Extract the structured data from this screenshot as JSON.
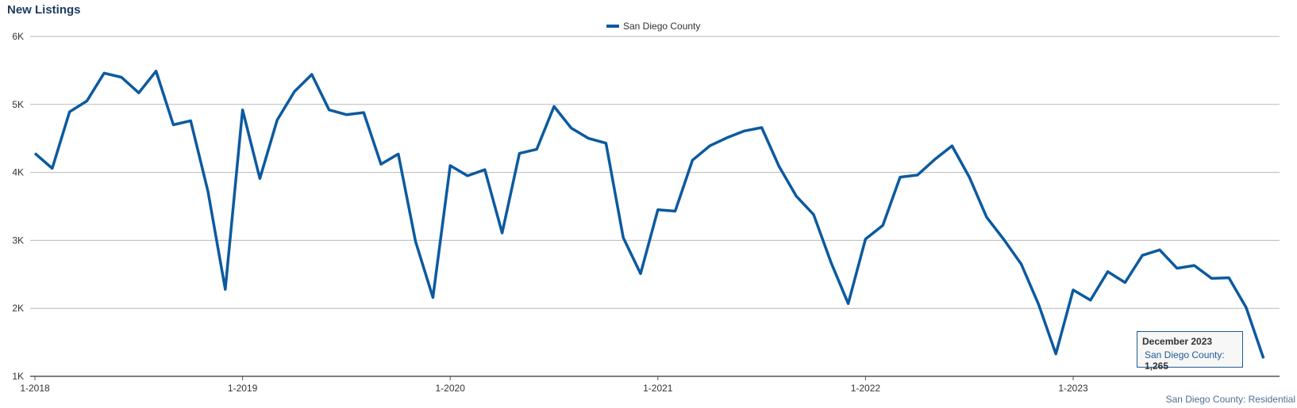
{
  "header": {
    "title": "New Listings"
  },
  "chart_data": {
    "type": "line",
    "title": "New Listings",
    "xlabel": "",
    "ylabel": "",
    "ylim": [
      1000,
      6000
    ],
    "y_ticks": [
      {
        "value": 1000,
        "label": "1K"
      },
      {
        "value": 2000,
        "label": "2K"
      },
      {
        "value": 3000,
        "label": "3K"
      },
      {
        "value": 4000,
        "label": "4K"
      },
      {
        "value": 5000,
        "label": "5K"
      },
      {
        "value": 6000,
        "label": "6K"
      }
    ],
    "x_ticks": [
      "1-2018",
      "1-2019",
      "1-2020",
      "1-2021",
      "1-2022",
      "1-2023"
    ],
    "grid": true,
    "legend": "top-center",
    "series": [
      {
        "name": "San Diego County",
        "color": "#0b5aa0",
        "x": [
          "2018-01",
          "2018-02",
          "2018-03",
          "2018-04",
          "2018-05",
          "2018-06",
          "2018-07",
          "2018-08",
          "2018-09",
          "2018-10",
          "2018-11",
          "2018-12",
          "2019-01",
          "2019-02",
          "2019-03",
          "2019-04",
          "2019-05",
          "2019-06",
          "2019-07",
          "2019-08",
          "2019-09",
          "2019-10",
          "2019-11",
          "2019-12",
          "2020-01",
          "2020-02",
          "2020-03",
          "2020-04",
          "2020-05",
          "2020-06",
          "2020-07",
          "2020-08",
          "2020-09",
          "2020-10",
          "2020-11",
          "2020-12",
          "2021-01",
          "2021-02",
          "2021-03",
          "2021-04",
          "2021-05",
          "2021-06",
          "2021-07",
          "2021-08",
          "2021-09",
          "2021-10",
          "2021-11",
          "2021-12",
          "2022-01",
          "2022-02",
          "2022-03",
          "2022-04",
          "2022-05",
          "2022-06",
          "2022-07",
          "2022-08",
          "2022-09",
          "2022-10",
          "2022-11",
          "2022-12",
          "2023-01",
          "2023-02",
          "2023-03",
          "2023-04",
          "2023-05",
          "2023-06",
          "2023-07",
          "2023-08",
          "2023-09",
          "2023-10",
          "2023-11",
          "2023-12"
        ],
        "values": [
          4280,
          4060,
          4890,
          5050,
          5460,
          5400,
          5170,
          5490,
          4700,
          4760,
          3720,
          2280,
          4920,
          3910,
          4770,
          5190,
          5440,
          4920,
          4850,
          4880,
          4120,
          4270,
          2980,
          2160,
          4100,
          3950,
          4040,
          3110,
          4280,
          4340,
          4970,
          4650,
          4500,
          4430,
          3040,
          2510,
          3450,
          3430,
          4180,
          4390,
          4510,
          4610,
          4660,
          4090,
          3650,
          3380,
          2680,
          2070,
          3020,
          3220,
          3930,
          3960,
          4190,
          4390,
          3930,
          3340,
          3010,
          2650,
          2060,
          1330,
          2270,
          2120,
          2540,
          2380,
          2780,
          2860,
          2590,
          2630,
          2440,
          2450,
          2010,
          1265
        ]
      }
    ]
  },
  "tooltip": {
    "title": "December 2023",
    "series": "San Diego County:",
    "value": "1,265"
  },
  "credit": {
    "text": "San Diego County: Residential"
  }
}
